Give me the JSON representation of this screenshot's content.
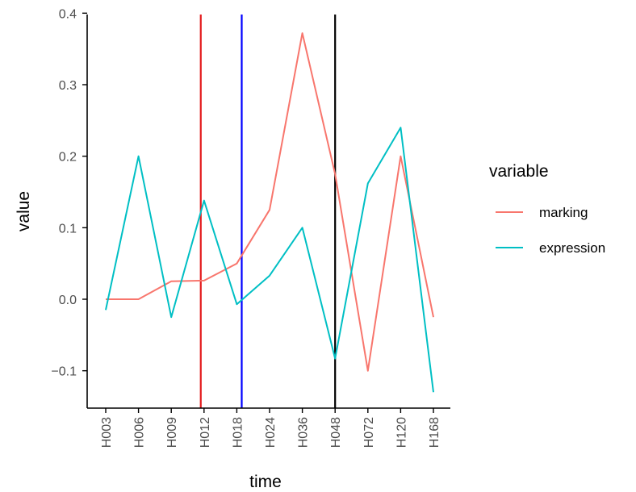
{
  "chart_data": {
    "type": "line",
    "categories": [
      "H003",
      "H006",
      "H009",
      "H012",
      "H018",
      "H024",
      "H036",
      "H048",
      "H072",
      "H120",
      "H168"
    ],
    "series": [
      {
        "name": "marking",
        "color": "#F8766D",
        "values": [
          0.0,
          0.0,
          0.025,
          0.026,
          0.05,
          0.125,
          0.372,
          0.175,
          -0.1,
          0.2,
          -0.025
        ]
      },
      {
        "name": "expression",
        "color": "#00BFC4",
        "values": [
          -0.015,
          0.2,
          -0.025,
          0.138,
          -0.007,
          0.033,
          0.1,
          -0.083,
          0.162,
          0.24,
          -0.13
        ]
      }
    ],
    "vlines": [
      {
        "x": 2.9,
        "color": "#E31A1C"
      },
      {
        "x": 4.15,
        "color": "#0000FF"
      },
      {
        "x": 7,
        "color": "#000000"
      }
    ],
    "xlabel": "time",
    "ylabel": "value",
    "ylim": [
      -0.155,
      0.4
    ],
    "yticks": [
      -0.1,
      0.0,
      0.1,
      0.2,
      0.3,
      0.4
    ],
    "ytick_labels": [
      "−0.1",
      "0.0",
      "0.1",
      "0.2",
      "0.3",
      "0.4"
    ],
    "grid": false,
    "legend": {
      "title": "variable",
      "position": "right"
    }
  }
}
